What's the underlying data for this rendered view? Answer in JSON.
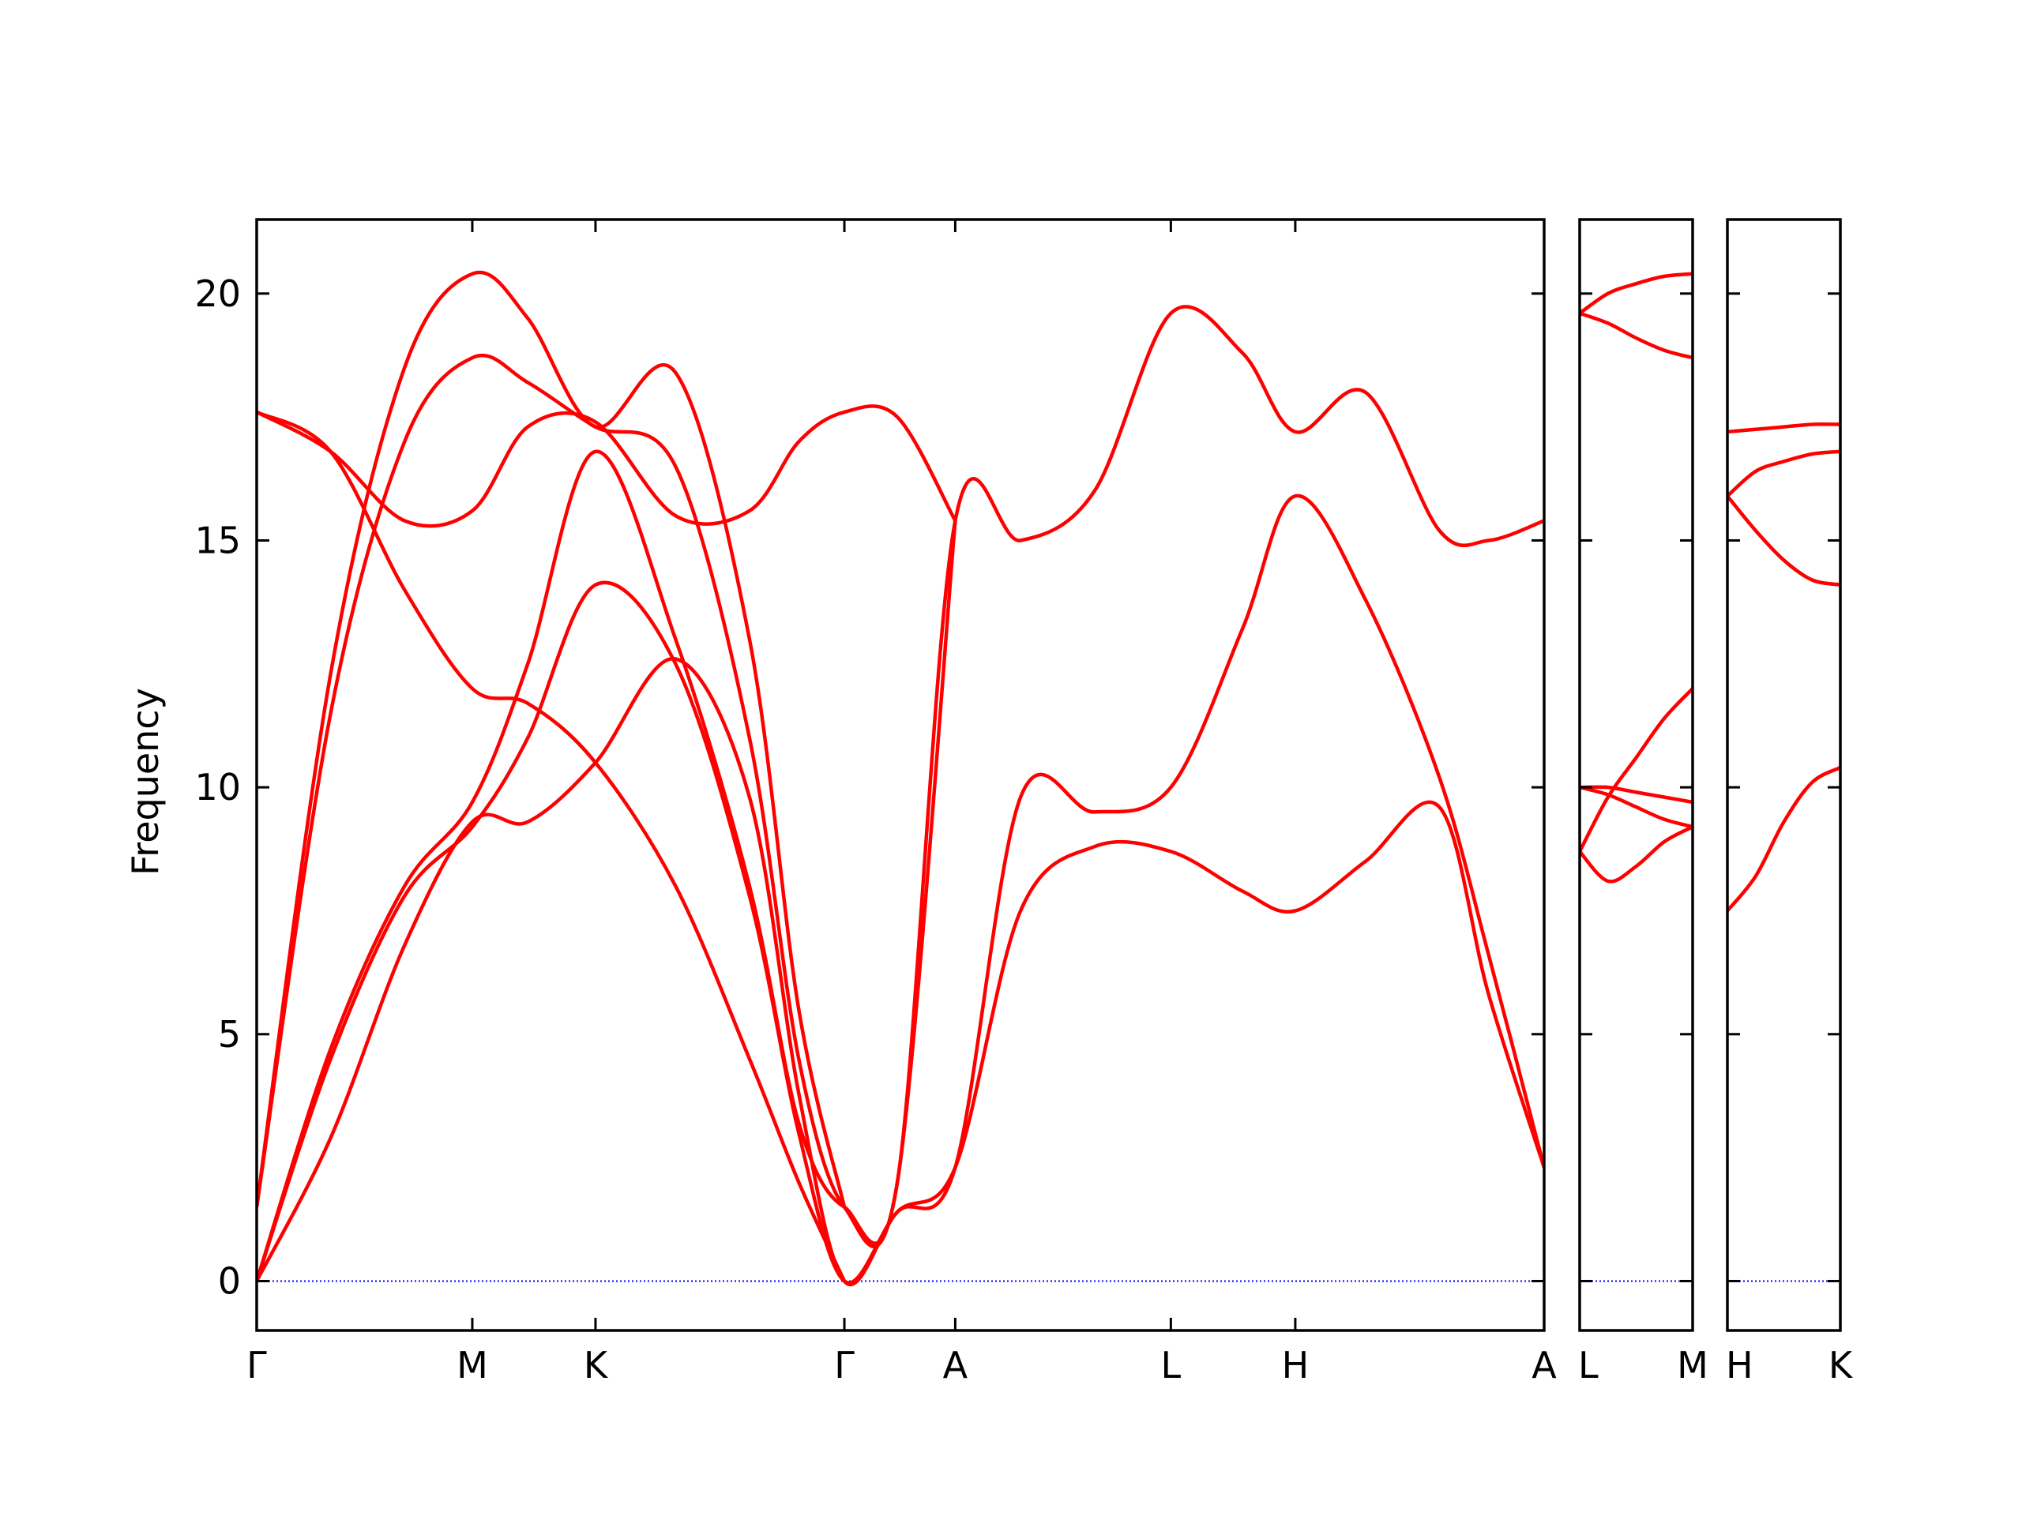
{
  "chart_data": {
    "type": "line",
    "title": "",
    "ylabel": "Frequency",
    "ylim": [
      -1,
      21.5
    ],
    "yticks": [
      0,
      5,
      10,
      15,
      20
    ],
    "grid": false,
    "colors": {
      "band": "#ff0000",
      "zero_line": "#0000ff",
      "frame": "#000000"
    },
    "panels": [
      {
        "name": "Γ-M-K-Γ-A-L-H-A",
        "x_range": [
          0,
          5.225
        ],
        "high_symmetry_points": [
          {
            "label": "Γ",
            "x": 0
          },
          {
            "label": "M",
            "x": 0.875
          },
          {
            "label": "K",
            "x": 1.375
          },
          {
            "label": "Γ",
            "x": 2.385
          },
          {
            "label": "A",
            "x": 2.835
          },
          {
            "label": "L",
            "x": 3.71
          },
          {
            "label": "H",
            "x": 4.215
          },
          {
            "label": "A",
            "x": 5.225
          }
        ],
        "series": [
          {
            "x": [
              0,
              0.3,
              0.6,
              0.875,
              1.1,
              1.375,
              1.7,
              2.0,
              2.2,
              2.385,
              2.6,
              2.835,
              3.1,
              3.4,
              3.71,
              4.0,
              4.215,
              4.5,
              4.8,
              5.0,
              5.225
            ],
            "y": [
              0,
              2.9,
              6.8,
              9.3,
              9.3,
              10.5,
              12.6,
              9.8,
              3.8,
              0,
              1.4,
              2.3,
              7.5,
              8.8,
              8.7,
              7.9,
              7.5,
              8.5,
              9.6,
              5.8,
              2.3
            ]
          },
          {
            "x": [
              0,
              0.3,
              0.6,
              0.875,
              1.1,
              1.375,
              1.7,
              2.0,
              2.2,
              2.385,
              2.6,
              2.835,
              3.1,
              3.4,
              3.71,
              4.0,
              4.215,
              4.5,
              4.8,
              5.0,
              5.225
            ],
            "y": [
              0,
              4.5,
              7.8,
              9.2,
              11.0,
              14.1,
              12.5,
              7.8,
              3.0,
              0,
              1.4,
              2.3,
              9.8,
              9.5,
              10.0,
              13.2,
              15.9,
              13.8,
              10.2,
              6.6,
              2.3
            ]
          },
          {
            "x": [
              0,
              0.3,
              0.6,
              0.875,
              1.1,
              1.375,
              1.7,
              2.0,
              2.2,
              2.385,
              2.6,
              2.835,
              3.1,
              3.4,
              3.71,
              4.0,
              4.215,
              4.5,
              4.8,
              5.0,
              5.225
            ],
            "y": [
              0,
              4.7,
              8.0,
              9.7,
              12.5,
              16.8,
              13.0,
              8.0,
              3.2,
              1.5,
              2.0,
              15.4,
              15.0,
              16.0,
              19.6,
              18.8,
              17.2,
              18.0,
              15.2,
              15.0,
              15.4
            ]
          },
          {
            "x": [
              0,
              0.3,
              0.6,
              0.875,
              1.1,
              1.375,
              1.7,
              2.0,
              2.2,
              2.385,
              2.6,
              2.835
            ],
            "y": [
              1.5,
              11.5,
              17.0,
              18.7,
              18.2,
              17.3,
              16.5,
              11.0,
              4.5,
              1.5,
              2.0,
              15.4
            ]
          },
          {
            "x": [
              0,
              0.3,
              0.6,
              0.875,
              1.1,
              1.375,
              1.7,
              2.0,
              2.2,
              2.385
            ],
            "y": [
              1.5,
              12.3,
              18.5,
              20.4,
              19.5,
              17.3,
              18.4,
              13.0,
              5.5,
              1.5
            ]
          },
          {
            "x": [
              0,
              0.3,
              0.6,
              0.875,
              1.1,
              1.375,
              1.7,
              2.0,
              2.2,
              2.385
            ],
            "y": [
              17.6,
              16.8,
              14.0,
              12.0,
              11.7,
              10.5,
              8.0,
              4.5,
              2.0,
              0
            ]
          },
          {
            "x": [
              0,
              0.3,
              0.6,
              0.875,
              1.1,
              1.375,
              1.7,
              2.0,
              2.2,
              2.385,
              2.6,
              2.835
            ],
            "y": [
              17.6,
              16.8,
              15.4,
              15.6,
              17.3,
              17.4,
              15.5,
              15.6,
              17.0,
              17.6,
              17.5,
              15.4
            ]
          }
        ]
      },
      {
        "name": "L-M",
        "x_range": [
          0,
          1
        ],
        "high_symmetry_points": [
          {
            "label": "L",
            "x": 0
          },
          {
            "label": "M",
            "x": 1
          }
        ],
        "series": [
          {
            "x": [
              0,
              0.25,
              0.5,
              0.75,
              1
            ],
            "y": [
              19.6,
              20.0,
              20.2,
              20.35,
              20.4
            ]
          },
          {
            "x": [
              0,
              0.25,
              0.5,
              0.75,
              1
            ],
            "y": [
              19.6,
              19.4,
              19.1,
              18.85,
              18.7
            ]
          },
          {
            "x": [
              0,
              0.25,
              0.5,
              0.75,
              1
            ],
            "y": [
              8.7,
              9.8,
              10.6,
              11.4,
              12.0
            ]
          },
          {
            "x": [
              0,
              0.25,
              0.5,
              0.75,
              1
            ],
            "y": [
              10.0,
              10.0,
              9.9,
              9.8,
              9.7
            ]
          },
          {
            "x": [
              0,
              0.25,
              0.5,
              0.75,
              1
            ],
            "y": [
              10.0,
              9.85,
              9.6,
              9.35,
              9.2
            ]
          },
          {
            "x": [
              0,
              0.25,
              0.5,
              0.75,
              1
            ],
            "y": [
              8.7,
              8.1,
              8.4,
              8.9,
              9.2
            ]
          }
        ]
      },
      {
        "name": "H-K",
        "x_range": [
          0,
          1
        ],
        "high_symmetry_points": [
          {
            "label": "H",
            "x": 0
          },
          {
            "label": "K",
            "x": 1
          }
        ],
        "series": [
          {
            "x": [
              0,
              0.25,
              0.5,
              0.75,
              1
            ],
            "y": [
              17.2,
              17.25,
              17.3,
              17.35,
              17.35
            ]
          },
          {
            "x": [
              0,
              0.25,
              0.5,
              0.75,
              1
            ],
            "y": [
              15.9,
              16.4,
              16.6,
              16.75,
              16.8
            ]
          },
          {
            "x": [
              0,
              0.25,
              0.5,
              0.75,
              1
            ],
            "y": [
              15.9,
              15.2,
              14.6,
              14.2,
              14.1
            ]
          },
          {
            "x": [
              0,
              0.25,
              0.5,
              0.75,
              1
            ],
            "y": [
              7.5,
              8.2,
              9.3,
              10.1,
              10.4
            ]
          }
        ]
      }
    ]
  }
}
